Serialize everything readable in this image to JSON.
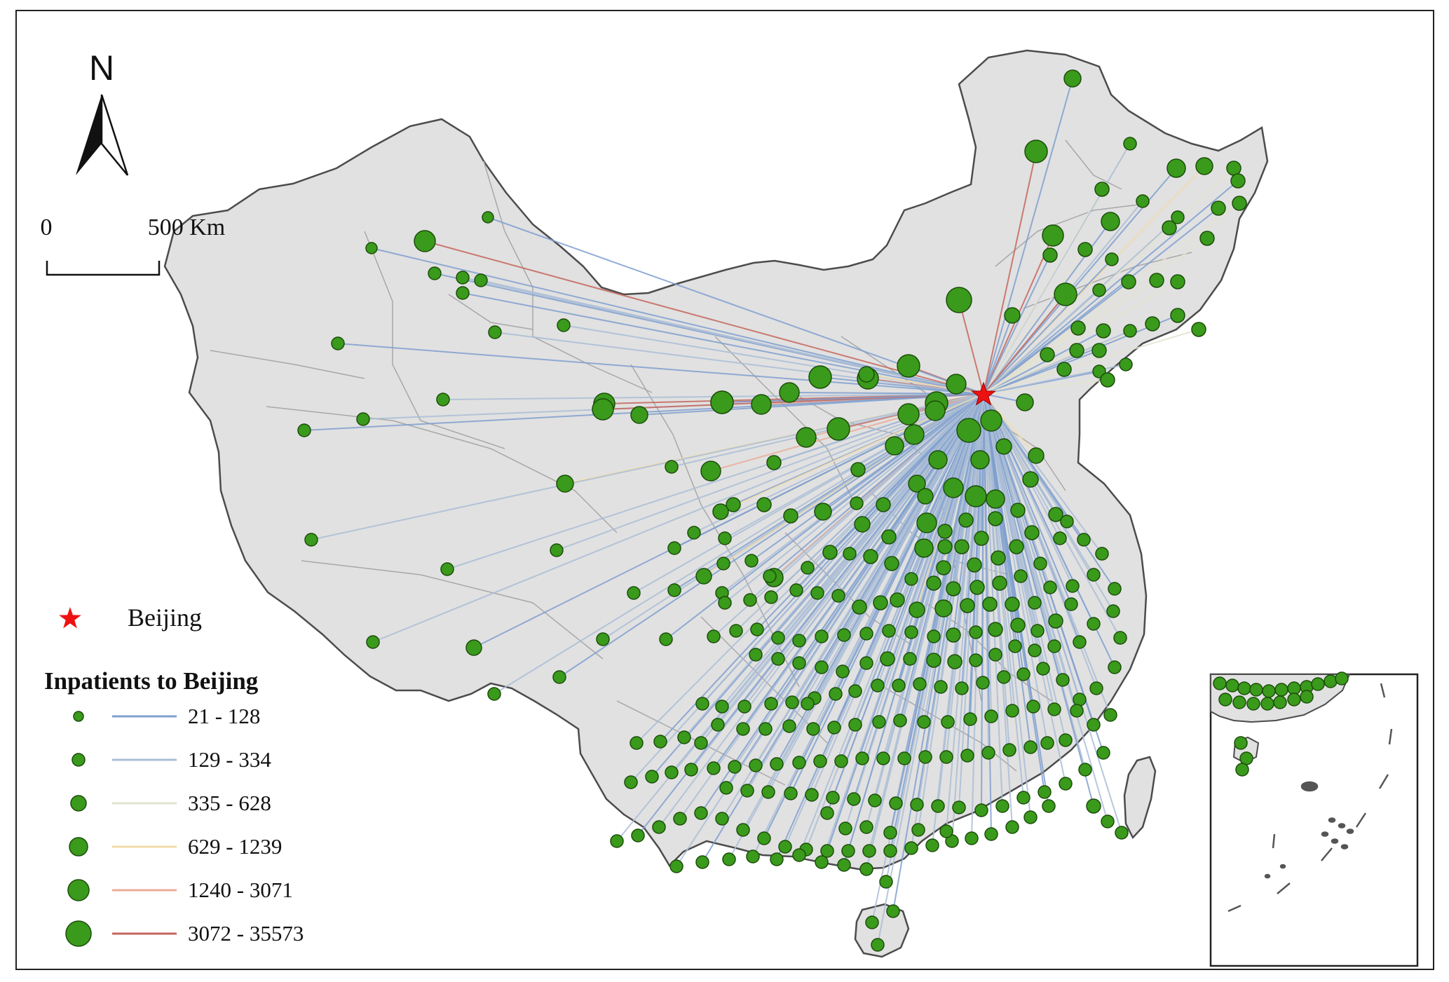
{
  "map": {
    "capital_name": "Beijing",
    "north_label": "N",
    "scale": {
      "start_label": "0",
      "end_label": "500 Km"
    },
    "legend": {
      "title": "Inpatients to Beijing",
      "classes": [
        {
          "range": "21 - 128",
          "line_color": "#7f9fcf"
        },
        {
          "range": "129 - 334",
          "line_color": "#aabdd6"
        },
        {
          "range": "335 - 628",
          "line_color": "#e3e2d0"
        },
        {
          "range": "629 - 1239",
          "line_color": "#f1dcaa"
        },
        {
          "range": "1240 - 3071",
          "line_color": "#e9ac98"
        },
        {
          "range": "3072 - 35573",
          "line_color": "#c4665d"
        }
      ]
    },
    "colors": {
      "land": "#e1e1e1",
      "border": "#4c4c4c",
      "internal_border": "#a8a8a8",
      "dot_fill": "#3a9a1b",
      "dot_stroke": "#1b4d0a",
      "capital_star": "#ee1111"
    },
    "icons": {
      "north_arrow": "north-arrow-icon",
      "capital_marker": "red-star-icon"
    }
  }
}
